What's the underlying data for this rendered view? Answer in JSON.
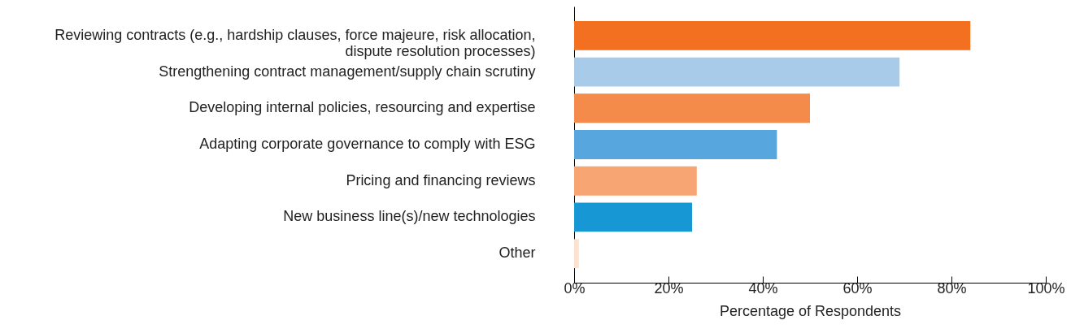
{
  "chart_data": {
    "type": "bar",
    "orientation": "horizontal",
    "categories": [
      "Reviewing contracts (e.g., hardship clauses, force majeure, risk allocation, dispute resolution processes)",
      "Strengthening contract management/supply chain scrutiny",
      "Developing internal policies, resourcing and expertise",
      "Adapting corporate governance to comply with ESG",
      "Pricing and financing reviews",
      "New business line(s)/new technologies",
      "Other"
    ],
    "values": [
      84,
      69,
      50,
      43,
      26,
      25,
      1
    ],
    "colors": [
      "#f37021",
      "#a9cbea",
      "#f58b4a",
      "#57a7de",
      "#f7a673",
      "#1798d5",
      "#fde2cf"
    ],
    "xlabel": "Percentage of Respondents",
    "xlim": [
      0,
      100
    ],
    "xticks": [
      {
        "value": 0,
        "label": "0%"
      },
      {
        "value": 20,
        "label": "20%"
      },
      {
        "value": 40,
        "label": "40%"
      },
      {
        "value": 60,
        "label": "60%"
      },
      {
        "value": 80,
        "label": "80%"
      },
      {
        "value": 100,
        "label": "100%"
      }
    ],
    "grid": false
  }
}
